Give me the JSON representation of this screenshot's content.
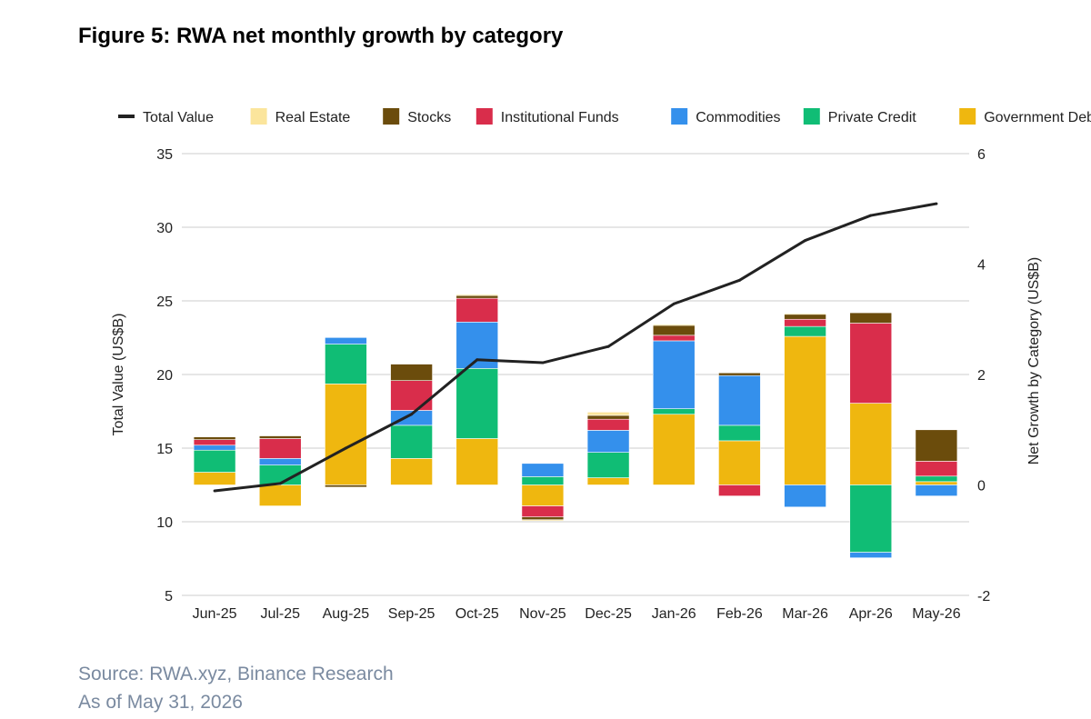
{
  "title": "Figure 5: RWA net monthly growth by category",
  "source": "Source: RWA.xyz, Binance Research",
  "as_of": "As of May 31, 2026",
  "chart_data": {
    "type": "bar",
    "stacked": true,
    "categories": [
      "Jun-25",
      "Jul-25",
      "Aug-25",
      "Sep-25",
      "Oct-25",
      "Nov-25",
      "Dec-25",
      "Jan-26",
      "Feb-26",
      "Mar-26",
      "Apr-26",
      "May-26"
    ],
    "ylabel": "Total Value (US$B)",
    "y2label": "Net Growth by Category (US$B)",
    "ylim": [
      5,
      35
    ],
    "yticks": [
      5,
      10,
      15,
      20,
      25,
      30,
      35
    ],
    "y2lim": [
      -2,
      6
    ],
    "y2ticks": [
      -2,
      0,
      2,
      4,
      6
    ],
    "grid": true,
    "legend_position": "top",
    "legend": [
      "Total Value",
      "Real Estate",
      "Stocks",
      "Institutional Funds",
      "Commodities",
      "Private Credit",
      "Government Debt"
    ],
    "line": {
      "name": "Total Value",
      "axis": "left",
      "color": "#222222",
      "values": [
        12.1,
        12.6,
        15.0,
        17.3,
        21.0,
        20.8,
        21.9,
        24.8,
        26.4,
        29.1,
        30.8,
        31.6
      ]
    },
    "series": [
      {
        "name": "Government Debt",
        "color": "#EFB70F",
        "axis": "right",
        "values": [
          0.23,
          -0.38,
          1.83,
          0.48,
          0.84,
          -0.38,
          0.13,
          1.28,
          0.8,
          2.69,
          1.48,
          0.06
        ]
      },
      {
        "name": "Private Credit",
        "color": "#10BD75",
        "axis": "right",
        "values": [
          0.4,
          0.36,
          0.72,
          0.6,
          1.27,
          0.15,
          0.46,
          0.1,
          0.28,
          0.18,
          -1.22,
          0.1
        ]
      },
      {
        "name": "Commodities",
        "color": "#3490EC",
        "axis": "right",
        "values": [
          0.09,
          0.12,
          0.12,
          0.27,
          0.84,
          0.24,
          0.4,
          1.23,
          0.9,
          -0.4,
          -0.1,
          -0.2
        ]
      },
      {
        "name": "Institutional Funds",
        "color": "#D92D4B",
        "axis": "right",
        "values": [
          0.1,
          0.36,
          0.0,
          0.54,
          0.43,
          -0.2,
          0.2,
          0.1,
          -0.2,
          0.13,
          1.45,
          0.27
        ]
      },
      {
        "name": "Stocks",
        "color": "#6B4C0C",
        "axis": "right",
        "values": [
          0.05,
          0.05,
          -0.04,
          0.3,
          0.05,
          -0.05,
          0.07,
          0.18,
          0.05,
          0.09,
          0.19,
          0.57
        ]
      },
      {
        "name": "Real Estate",
        "color": "#FBE59C",
        "axis": "right",
        "values": [
          0.01,
          0.01,
          0.0,
          0.01,
          0.02,
          -0.02,
          0.06,
          0.02,
          0.01,
          0.02,
          0.01,
          0.01
        ]
      }
    ]
  }
}
